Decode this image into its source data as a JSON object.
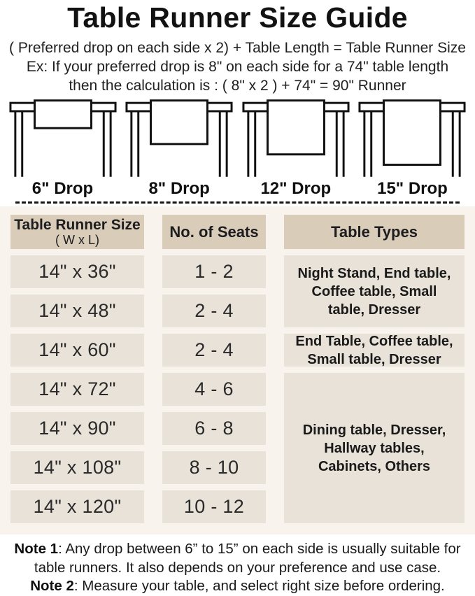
{
  "page": {
    "title": "Table Runner Size Guide"
  },
  "formula": {
    "rule": "( Preferred drop on each side x 2) + Table Length = Table Runner Size",
    "example_line1": "Ex: If your preferred drop is 8\" on each side for a 74\" table length",
    "example_line2": "then the calculation is : ( 8\" x 2 ) + 74\" = 90\" Runner"
  },
  "drops": [
    {
      "label": "6\" Drop",
      "inches": 6
    },
    {
      "label": "8\" Drop",
      "inches": 8
    },
    {
      "label": "12\" Drop",
      "inches": 12
    },
    {
      "label": "15\" Drop",
      "inches": 15
    }
  ],
  "size_table": {
    "column_headers": [
      {
        "title": "Table Runner Size",
        "subtitle": "( W x L)"
      },
      {
        "title": "No. of Seats",
        "subtitle": ""
      },
      {
        "title": "Table Types",
        "subtitle": ""
      }
    ],
    "rows": [
      {
        "size": "14\" x 36\"",
        "seats": "1 - 2"
      },
      {
        "size": "14\" x 48\"",
        "seats": "2 - 4"
      },
      {
        "size": "14\" x 60\"",
        "seats": "2 - 4"
      },
      {
        "size": "14\" x 72\"",
        "seats": "4 - 6"
      },
      {
        "size": "14\" x 90\"",
        "seats": "6 - 8"
      },
      {
        "size": "14\" x 108\"",
        "seats": "8 - 10"
      },
      {
        "size": "14\" x 120\"",
        "seats": "10 - 12"
      }
    ],
    "table_types": [
      {
        "text": "Night Stand, End table, Coffee table, Small table, Dresser",
        "row_start": 1,
        "row_span": 2
      },
      {
        "text": "End Table, Coffee table, Small table, Dresser",
        "row_start": 3,
        "row_span": 1
      },
      {
        "text": "Dining table, Dresser, Hallway tables, Cabinets, Others",
        "row_start": 4,
        "row_span": 4
      }
    ]
  },
  "notes": [
    {
      "label": "Note 1",
      "text": ": Any drop between 6” to 15” on each side is usually suitable for table runners. It also depends on your preference and use case."
    },
    {
      "label": "Note 2",
      "text": ": Measure your table, and select right size before ordering."
    }
  ],
  "colors": {
    "header_cell_bg": "#d9ccb9",
    "data_cell_bg": "#e8e2d9",
    "table_section_bg": "#f8f4ed",
    "text": "#1d1d1f",
    "line_art": "#111111"
  }
}
